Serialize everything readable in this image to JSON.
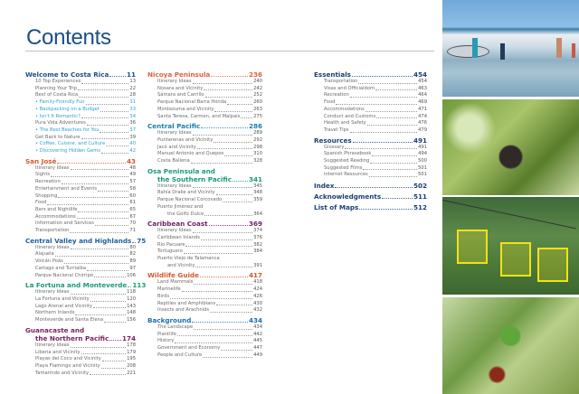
{
  "title": "Contents",
  "columns": [
    [
      {
        "heading": [
          "Welcome to Costa Rica"
        ],
        "page": "11",
        "color": "#1b4f8a",
        "items": [
          {
            "label": "10 Top Experiences",
            "page": "13"
          },
          {
            "label": "Planning Your Trip",
            "page": "22"
          },
          {
            "label": "Best of Costa Rica",
            "page": "28"
          },
          {
            "label": "• Family-Friendly Fun",
            "page": "31",
            "highlight": true
          },
          {
            "label": "• Backpacking on a Budget",
            "page": "33",
            "highlight": true
          },
          {
            "label": "• Isn't It Romantic?",
            "page": "34",
            "highlight": true
          },
          {
            "label": "Pura Vida Adventures",
            "page": "36"
          },
          {
            "label": "• The Best Beaches for You",
            "page": "37",
            "highlight": true
          },
          {
            "label": "Get Back to Nature",
            "page": "39"
          },
          {
            "label": "• Coffee, Cuisine, and Culture",
            "page": "40",
            "highlight": true
          },
          {
            "label": "• Discovering Hidden Gems",
            "page": "42",
            "highlight": true
          }
        ]
      },
      {
        "heading": [
          "San José"
        ],
        "page": "43",
        "color": "#d8572a",
        "items": [
          {
            "label": "Itinerary Ideas",
            "page": "48"
          },
          {
            "label": "Sights",
            "page": "49"
          },
          {
            "label": "Recreation",
            "page": "57"
          },
          {
            "label": "Entertainment and Events",
            "page": "58"
          },
          {
            "label": "Shopping",
            "page": "60"
          },
          {
            "label": "Food",
            "page": "61"
          },
          {
            "label": "Bars and Nightlife",
            "page": "65"
          },
          {
            "label": "Accommodations",
            "page": "67"
          },
          {
            "label": "Information and Services",
            "page": "70"
          },
          {
            "label": "Transportation",
            "page": "71"
          }
        ]
      },
      {
        "heading": [
          "Central Valley and Highlands"
        ],
        "page": "75",
        "color": "#1f5f99",
        "items": [
          {
            "label": "Itinerary Ideas",
            "page": "80"
          },
          {
            "label": "Alajuela",
            "page": "82"
          },
          {
            "label": "Volcán Poás",
            "page": "89"
          },
          {
            "label": "Cartago and Turrialba",
            "page": "97"
          },
          {
            "label": "Parque Nacional Chirripó",
            "page": "106"
          }
        ]
      },
      {
        "heading": [
          "La Fortuna and Monteverde"
        ],
        "page": "113",
        "color": "#1a9a7a",
        "items": [
          {
            "label": "Itinerary Ideas",
            "page": "118"
          },
          {
            "label": "La Fortuna and Vicinity",
            "page": "120"
          },
          {
            "label": "Lago Arenal and Vicinity",
            "page": "143"
          },
          {
            "label": "Northern Inlands",
            "page": "148"
          },
          {
            "label": "Monteverde and Santa Elena",
            "page": "156"
          }
        ]
      },
      {
        "heading": [
          "Guanacaste and",
          "the Northern Pacific"
        ],
        "page": "174",
        "color": "#7b1f5e",
        "items": [
          {
            "label": "Itinerary Ideas",
            "page": "178"
          },
          {
            "label": "Liberia and Vicinity",
            "page": "179"
          },
          {
            "label": "Playas del Coco and Vicinity",
            "page": "195"
          },
          {
            "label": "Playa Flamingo and Vicinity",
            "page": "208"
          },
          {
            "label": "Tamarindo and Vicinity",
            "page": "221"
          }
        ]
      }
    ],
    [
      {
        "heading": [
          "Nicoya Peninsula"
        ],
        "page": "236",
        "color": "#e0603c",
        "items": [
          {
            "label": "Itinerary Ideas",
            "page": "240"
          },
          {
            "label": "Nosara and Vicinity",
            "page": "242"
          },
          {
            "label": "Sámara and Carrillo",
            "page": "252"
          },
          {
            "label": "Parque Nacional Barra Honda",
            "page": "260"
          },
          {
            "label": "Montezuma and Vicinity",
            "page": "263"
          },
          {
            "label": "Santa Teresa, Carmen, and Malpaís",
            "page": "275"
          }
        ]
      },
      {
        "heading": [
          "Central Pacific"
        ],
        "page": "286",
        "color": "#1a7fb0",
        "items": [
          {
            "label": "Itinerary Ideas",
            "page": "289"
          },
          {
            "label": "Puntarenas and Vicinity",
            "page": "292"
          },
          {
            "label": "Jacó and Vicinity",
            "page": "298"
          },
          {
            "label": "Manuel Antonio and Quepos",
            "page": "310"
          },
          {
            "label": "Costa Ballena",
            "page": "328"
          }
        ]
      },
      {
        "heading": [
          "Osa Peninsula and",
          "the Southern Pacific"
        ],
        "page": "341",
        "color": "#1a9a7a",
        "items": [
          {
            "label": "Itinerary Ideas",
            "page": "345"
          },
          {
            "label": "Bahía Drake and Vicinity",
            "page": "348"
          },
          {
            "label": "Parque Nacional Corcovado",
            "page": "359"
          },
          {
            "label": [
              "Puerto Jiménez and",
              "the Golfo Dulce"
            ],
            "page": "364"
          }
        ]
      },
      {
        "heading": [
          "Caribbean Coast"
        ],
        "page": "369",
        "color": "#6e1f66",
        "items": [
          {
            "label": "Itinerary Ideas",
            "page": "374"
          },
          {
            "label": "Caribbean Inlands",
            "page": "376"
          },
          {
            "label": "Río Pacuare",
            "page": "382"
          },
          {
            "label": "Tortuguero",
            "page": "384"
          },
          {
            "label": [
              "Puerto Viejo de Talamanca",
              "and Vicinity"
            ],
            "page": "391"
          }
        ]
      },
      {
        "heading": [
          "Wildlife Guide"
        ],
        "page": "417",
        "color": "#d8572a",
        "items": [
          {
            "label": "Land Mammals",
            "page": "418"
          },
          {
            "label": "Marinelife",
            "page": "424"
          },
          {
            "label": "Birds",
            "page": "426"
          },
          {
            "label": "Reptiles and Amphibians",
            "page": "430"
          },
          {
            "label": "Insects and Arachnids",
            "page": "432"
          }
        ]
      },
      {
        "heading": [
          "Background"
        ],
        "page": "434",
        "color": "#1a70b0",
        "items": [
          {
            "label": "The Landscape",
            "page": "434"
          },
          {
            "label": "Plantlife",
            "page": "442"
          },
          {
            "label": "History",
            "page": "445"
          },
          {
            "label": "Government and Economy",
            "page": "447"
          },
          {
            "label": "People and Culture",
            "page": "449"
          }
        ]
      }
    ],
    [
      {
        "heading": [
          "Essentials"
        ],
        "page": "454",
        "color": "#1b3f73",
        "items": [
          {
            "label": "Transportation",
            "page": "454"
          },
          {
            "label": "Visas and Officialdom",
            "page": "463"
          },
          {
            "label": "Recreation",
            "page": "464"
          },
          {
            "label": "Food",
            "page": "469"
          },
          {
            "label": "Accommodations",
            "page": "471"
          },
          {
            "label": "Conduct and Customs",
            "page": "474"
          },
          {
            "label": "Health and Safety",
            "page": "476"
          },
          {
            "label": "Travel Tips",
            "page": "479"
          }
        ]
      },
      {
        "heading": [
          "Resources"
        ],
        "page": "491",
        "color": "#1b3f73",
        "items": [
          {
            "label": "Glossary",
            "page": "491"
          },
          {
            "label": "Spanish Phrasebook",
            "page": "494"
          },
          {
            "label": "Suggested Reading",
            "page": "500"
          },
          {
            "label": "Suggested Films",
            "page": "501"
          },
          {
            "label": "Internet Resources",
            "page": "501"
          }
        ]
      },
      {
        "heading": [
          "Index"
        ],
        "page": "502",
        "color": "#1b3f73",
        "items": []
      },
      {
        "heading": [
          "Acknowledgments"
        ],
        "page": "511",
        "color": "#1b3f73",
        "items": []
      },
      {
        "heading": [
          "List of Maps"
        ],
        "page": "512",
        "color": "#1b3f73",
        "items": []
      }
    ]
  ]
}
